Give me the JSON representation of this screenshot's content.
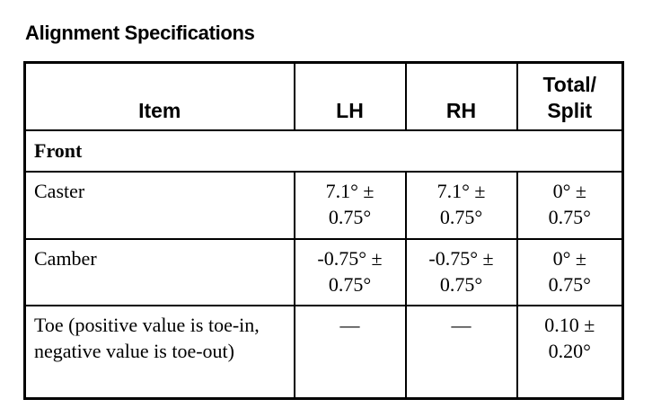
{
  "title": "Alignment Specifications",
  "table": {
    "headers": [
      "Item",
      "LH",
      "RH",
      "Total/ Split"
    ],
    "section": "Front",
    "rows": [
      {
        "item": "Caster",
        "lh": "7.1° ± 0.75°",
        "rh": "7.1° ± 0.75°",
        "total": "0° ± 0.75°"
      },
      {
        "item": "Camber",
        "lh": "-0.75° ± 0.75°",
        "rh": "-0.75° ± 0.75°",
        "total": "0° ± 0.75°"
      },
      {
        "item": "Toe (positive value is toe-in, negative value is toe-out)",
        "lh": "—",
        "rh": "—",
        "total": "0.10 ± 0.20°"
      }
    ]
  }
}
